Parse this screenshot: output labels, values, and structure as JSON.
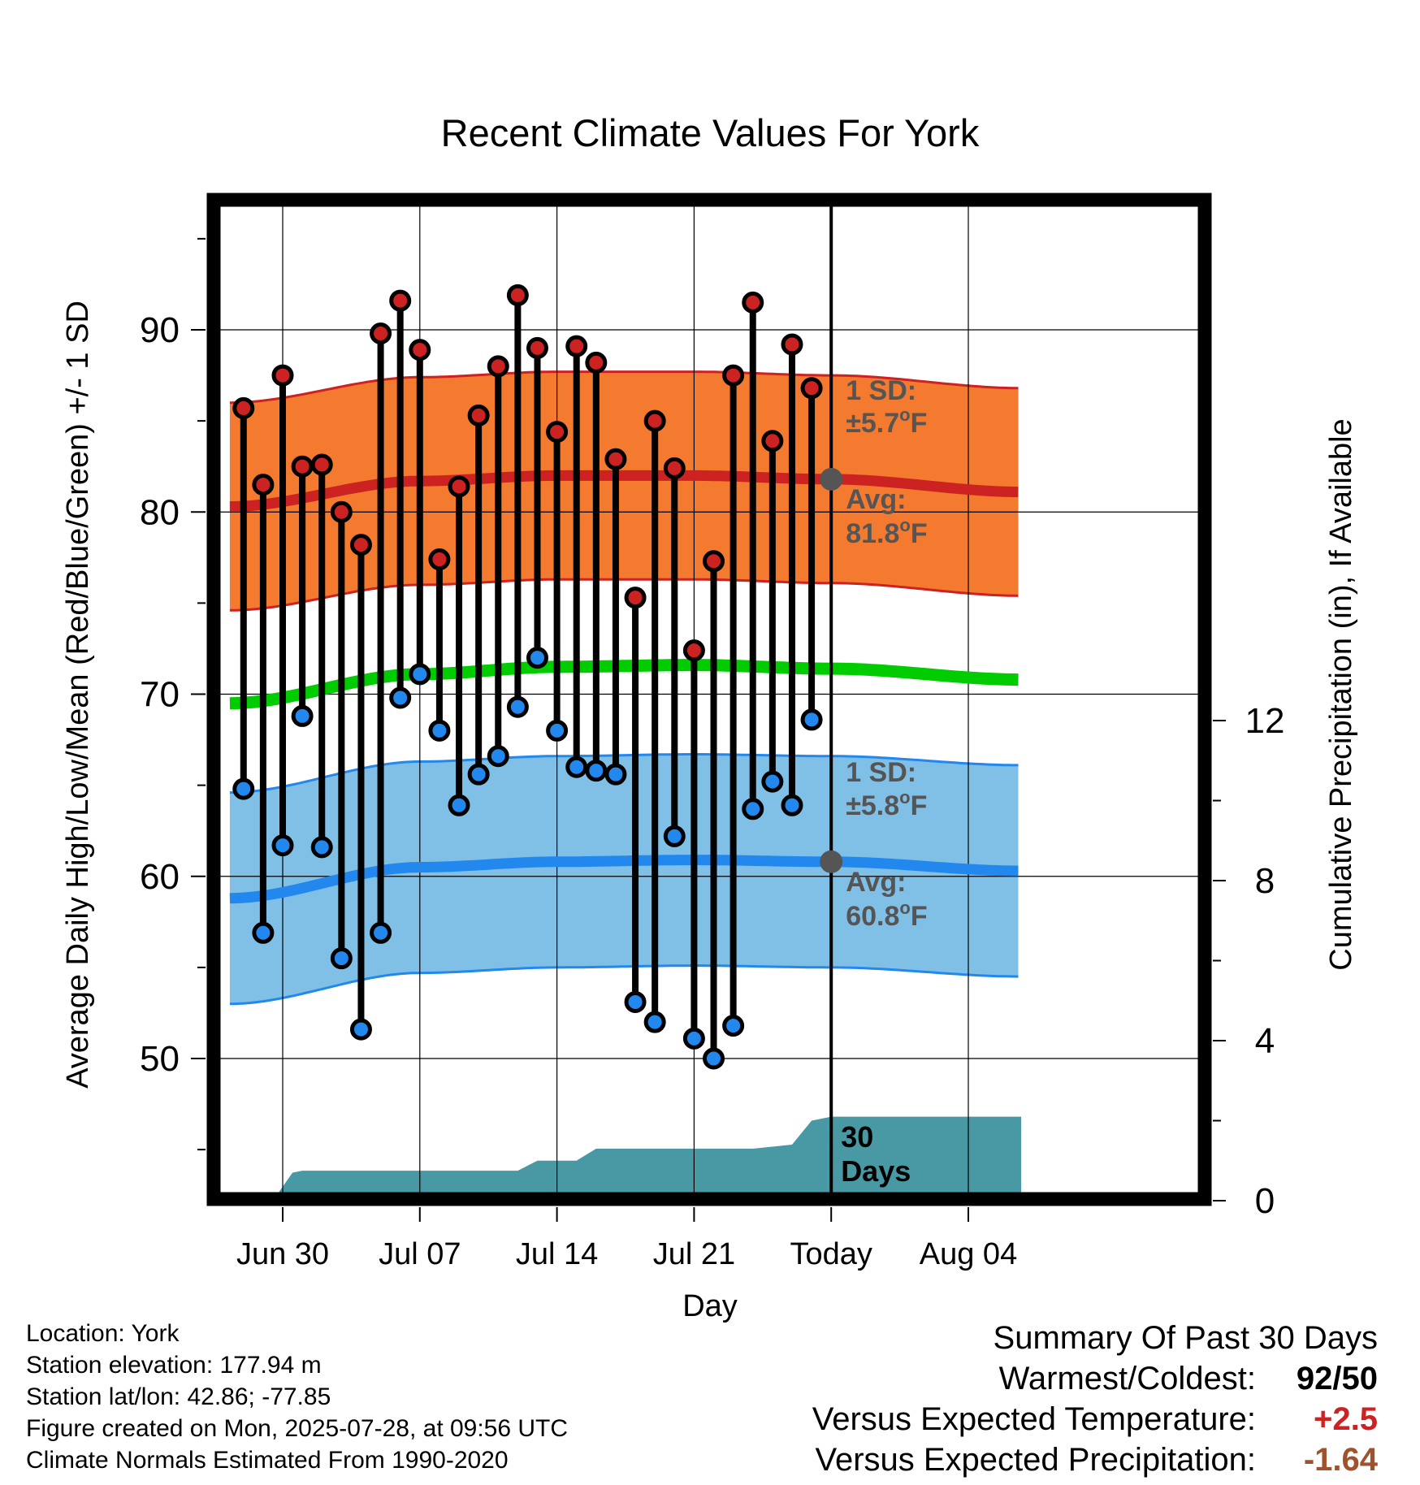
{
  "chart_data": {
    "type": "line",
    "title": "Recent Climate Values For York",
    "xlabel": "Day",
    "ylabel": "Average Daily High/Low/Mean (Red/Blue/Green) +/- 1 SD",
    "y2label": "Cumulative Precipitation (in), If Available",
    "ylim": [
      43,
      97
    ],
    "y2lim": [
      0,
      24
    ],
    "yticks": [
      50,
      60,
      70,
      80,
      90
    ],
    "y2ticks": [
      0,
      4,
      8,
      12
    ],
    "xticks": [
      {
        "day": 0,
        "label": "Jun 30"
      },
      {
        "day": 7,
        "label": "Jul 07"
      },
      {
        "day": 14,
        "label": "Jul 14"
      },
      {
        "day": 21,
        "label": "Jul 21"
      },
      {
        "day": 28,
        "label": "Today"
      },
      {
        "day": 35,
        "label": "Aug 04"
      }
    ],
    "xlim": [
      -3.3,
      37.7
    ],
    "today_day": 28,
    "highs": [
      85.7,
      81.5,
      87.5,
      82.5,
      82.6,
      80.0,
      78.2,
      89.8,
      91.6,
      88.9,
      77.4,
      81.4,
      85.3,
      88.0,
      91.9,
      89.0,
      84.4,
      89.1,
      88.2,
      82.9,
      75.3,
      85.0,
      82.4,
      72.4,
      77.3,
      87.5,
      91.5,
      83.9,
      89.2,
      86.8
    ],
    "lows": [
      64.8,
      56.9,
      61.7,
      68.8,
      61.6,
      55.5,
      51.6,
      56.9,
      69.8,
      71.1,
      68.0,
      63.9,
      65.6,
      66.6,
      69.3,
      72.0,
      68.0,
      66.0,
      65.8,
      65.6,
      53.1,
      52.0,
      62.2,
      51.1,
      50.0,
      51.8,
      63.7,
      65.2,
      63.9,
      68.6
    ],
    "day_start": -2,
    "normal_high": {
      "x": [
        -2.7,
        7,
        14,
        21,
        28,
        37.7
      ],
      "values": [
        80.3,
        81.7,
        82.0,
        82.0,
        81.8,
        81.1
      ]
    },
    "normal_high_sd": 5.7,
    "normal_low": {
      "x": [
        -2.7,
        7,
        14,
        21,
        28,
        37.7
      ],
      "values": [
        58.8,
        60.5,
        60.8,
        60.9,
        60.8,
        60.3
      ]
    },
    "normal_low_sd": 5.8,
    "normal_mean": {
      "x": [
        -2.7,
        7,
        14,
        21,
        28,
        37.7
      ],
      "values": [
        69.5,
        71.1,
        71.5,
        71.6,
        71.4,
        70.8
      ]
    },
    "precip_cumulative": {
      "x": [
        -2.7,
        -0.5,
        0.5,
        1,
        12,
        13,
        14,
        15,
        16,
        21,
        24,
        26,
        27,
        28,
        37.7
      ],
      "values": [
        0,
        0,
        0.7,
        0.75,
        0.75,
        1.0,
        1.0,
        1.0,
        1.3,
        1.3,
        1.3,
        1.4,
        2.0,
        2.1,
        2.1
      ]
    },
    "high_labels": {
      "sd": "1 SD:",
      "sd_val": "±5.7",
      "avg": "Avg:",
      "avg_val": "81.8"
    },
    "low_labels": {
      "sd": "1 SD:",
      "sd_val": "±5.8",
      "avg": "Avg:",
      "avg_val": "60.8"
    },
    "degree_unit": "F",
    "degree_symbol": "o",
    "precip_label_line1": "30",
    "precip_label_line2": "Days",
    "colors": {
      "high_band": "#f47a30",
      "high_line": "#cc2222",
      "low_band": "#80c0e6",
      "low_line": "#2288ee",
      "mean_line": "#00cc00",
      "precip": "#4899a3",
      "high_dot": "#cc2222",
      "low_dot": "#2288ee",
      "annot_text": "#555555",
      "warm_value": "#cc2222",
      "precip_value": "#a0522d"
    }
  },
  "info": {
    "location": "Location: York",
    "elevation": "Station elevation: 177.94 m",
    "latlon": "Station lat/lon: 42.86; -77.85",
    "created": "Figure created on Mon, 2025-07-28, at 09:56 UTC",
    "normals": "Climate Normals Estimated From 1990-2020"
  },
  "summary": {
    "heading": "Summary Of Past 30 Days",
    "warmest_label": "Warmest/Coldest:",
    "warmest_value": "92/50",
    "temp_label": "Versus Expected Temperature:",
    "temp_value": "+2.5",
    "precip_label": "Versus Expected Precipitation:",
    "precip_value": "-1.64"
  }
}
